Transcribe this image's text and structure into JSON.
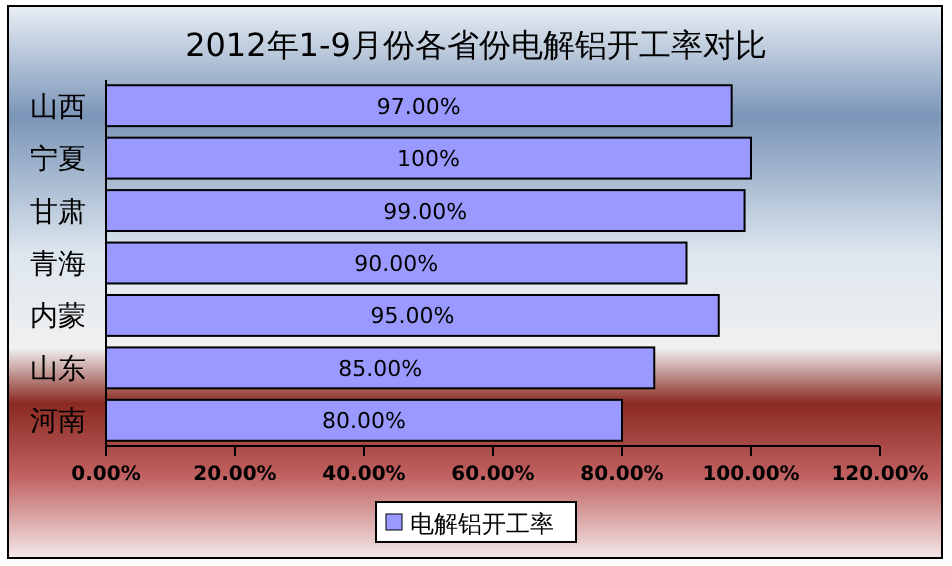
{
  "chart_data": {
    "type": "bar",
    "orientation": "horizontal",
    "title": "2012年1-9月份各省份电解铝开工率对比",
    "categories": [
      "山西",
      "宁夏",
      "甘肃",
      "青海",
      "内蒙",
      "山东",
      "河南"
    ],
    "series": [
      {
        "name": "电解铝开工率",
        "color": "#9999ff",
        "values": [
          97,
          100,
          99,
          90,
          95,
          85,
          80
        ]
      }
    ],
    "value_labels": [
      "97.00%",
      "100%",
      "99.00%",
      "90.00%",
      "95.00%",
      "85.00%",
      "80.00%"
    ],
    "xlim": [
      0,
      120
    ],
    "xticks": [
      {
        "value": 0,
        "label": "0.00%"
      },
      {
        "value": 20,
        "label": "20.00%"
      },
      {
        "value": 40,
        "label": "40.00%"
      },
      {
        "value": 60,
        "label": "60.00%"
      },
      {
        "value": 80,
        "label": "80.00%"
      },
      {
        "value": 100,
        "label": "100.00%"
      },
      {
        "value": 120,
        "label": "120.00%"
      }
    ],
    "legend": "bottom",
    "grid": false
  }
}
